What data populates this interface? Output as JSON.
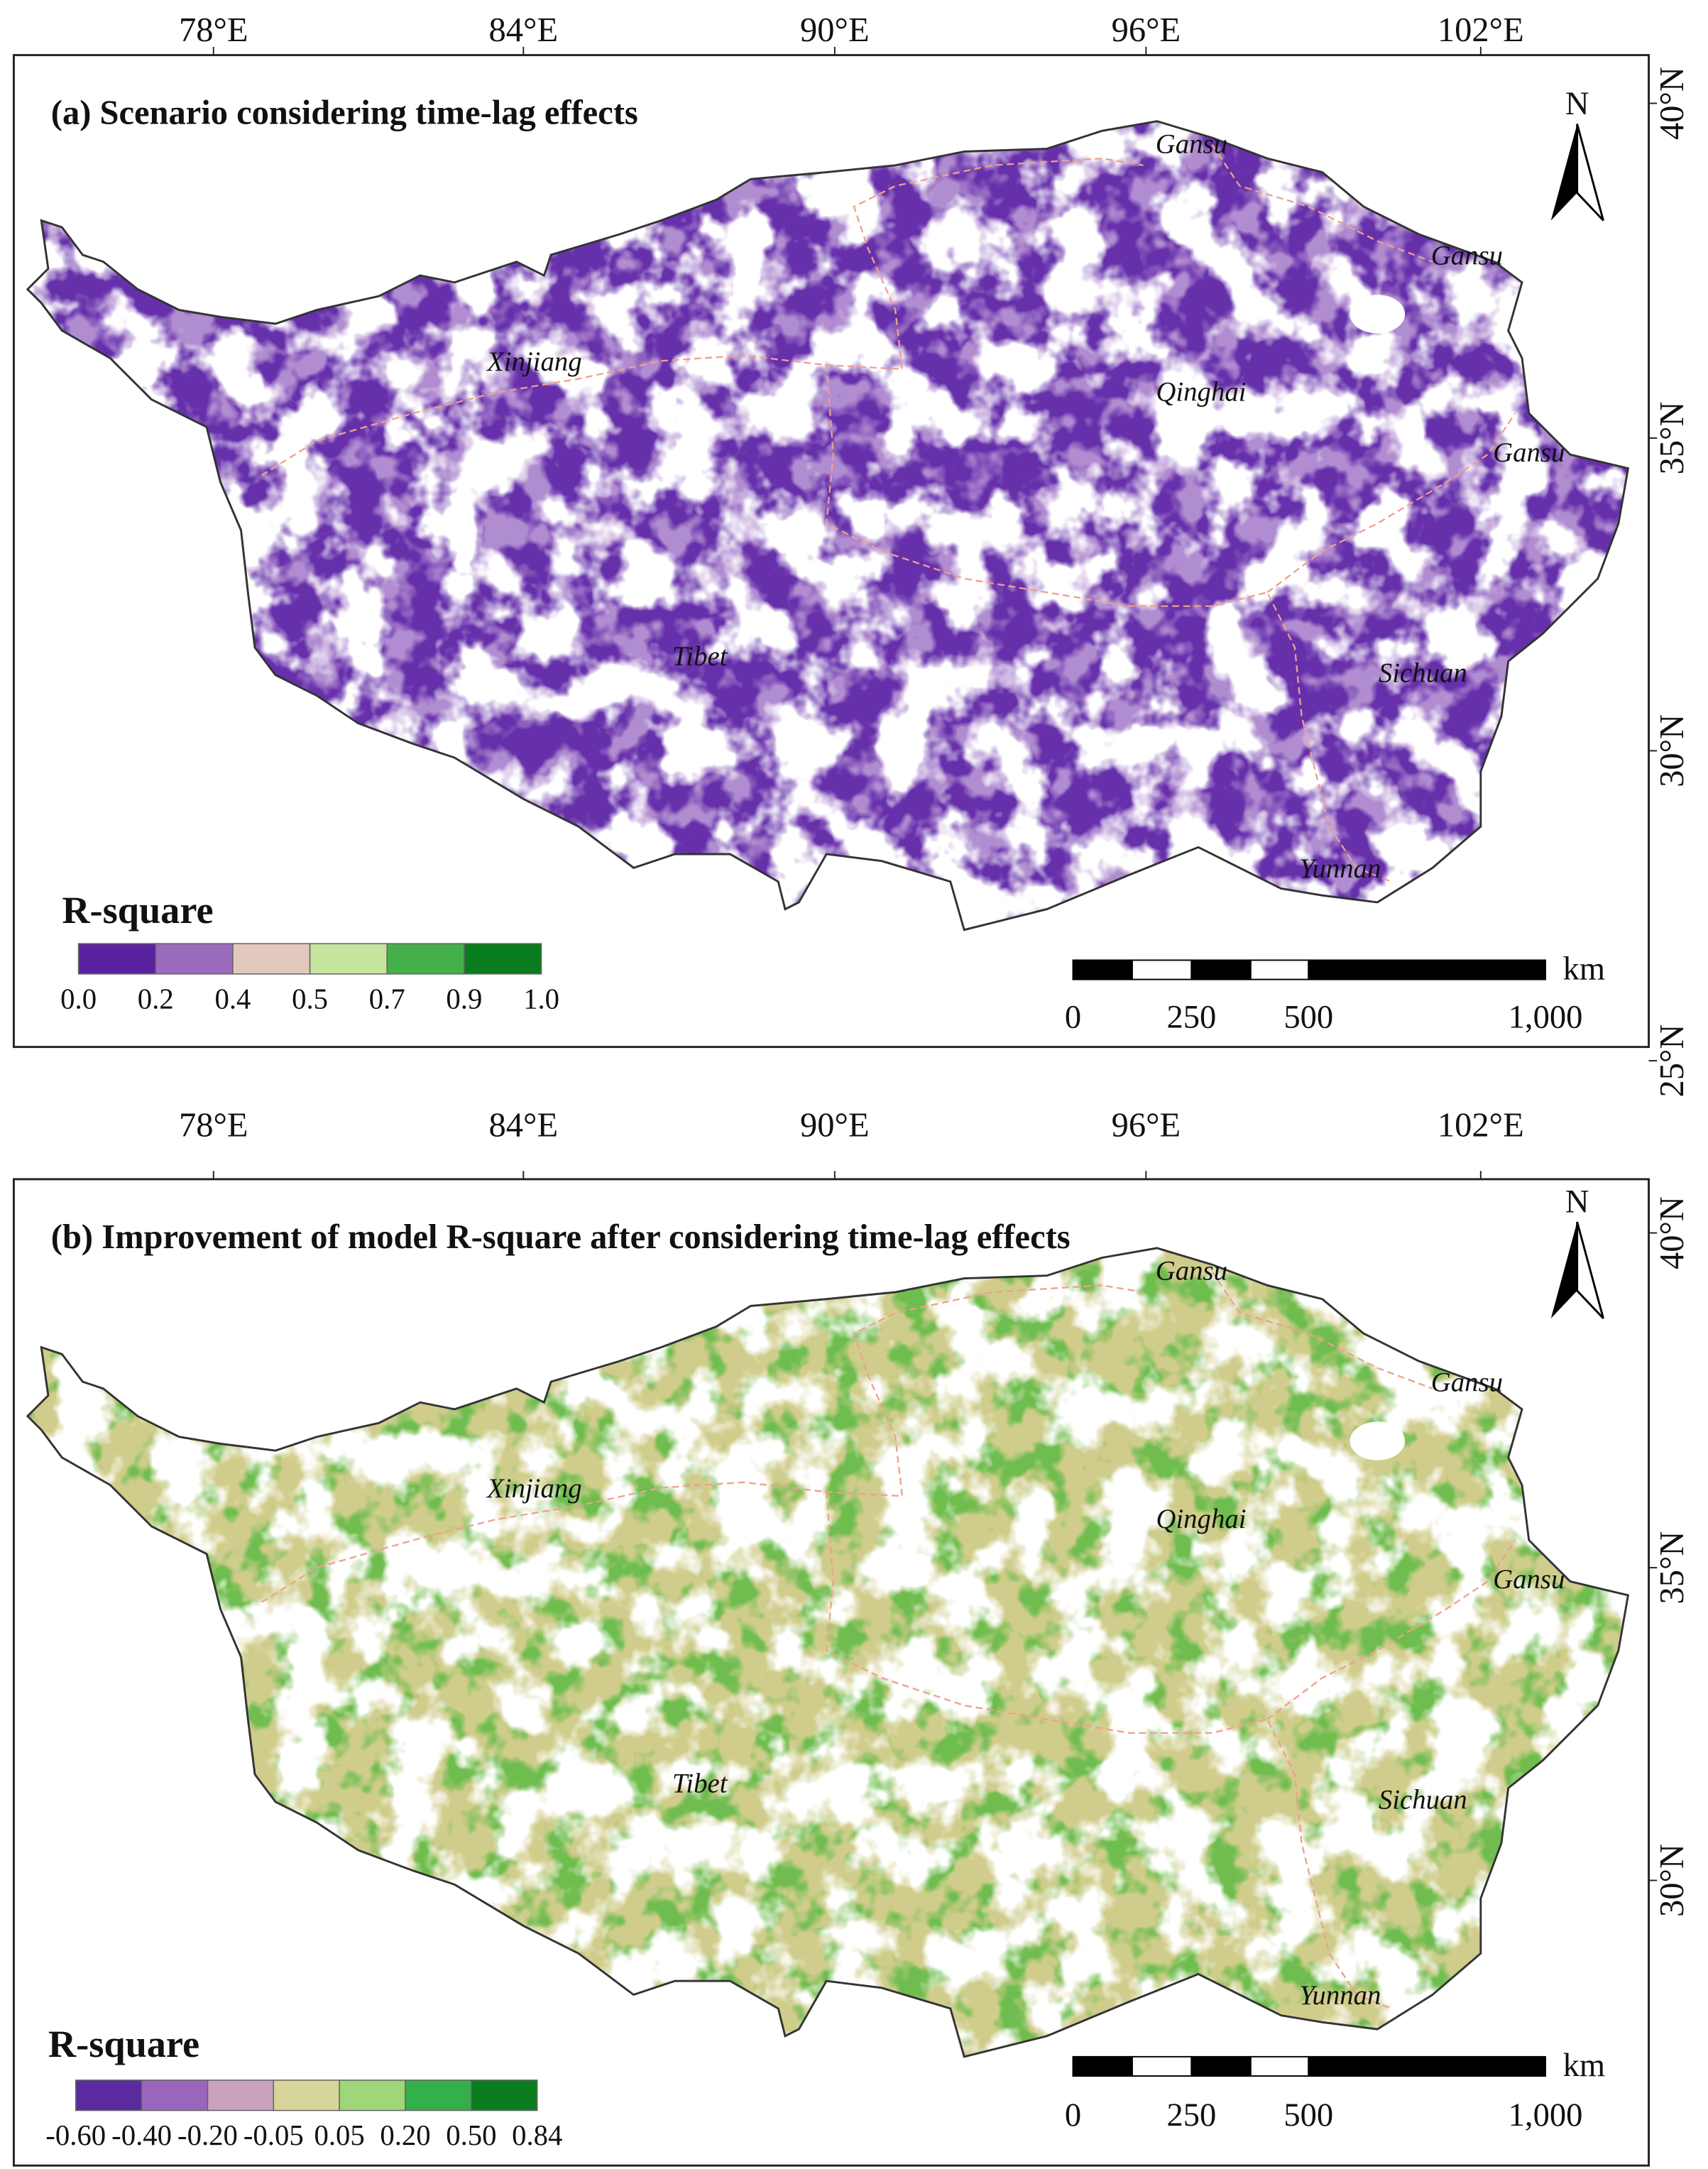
{
  "panels": [
    {
      "title": "(a) Scenario considering time-lag effects",
      "lon_labels": [
        "78°E",
        "84°E",
        "90°E",
        "96°E",
        "102°E"
      ],
      "lat_labels": [
        "40°N",
        "35°N",
        "30°N",
        "25°N"
      ],
      "provinces": [
        "Gansu",
        "Gansu",
        "Gansu",
        "Xinjiang",
        "Qinghai",
        "Tibet",
        "Sichuan",
        "Yunnan"
      ],
      "legend": {
        "title": "R-square",
        "colors": [
          "#5a22a0",
          "#9b6bbd",
          "#e3c9bd",
          "#c6e59c",
          "#45b04a",
          "#0a7d1e"
        ],
        "labels": [
          "0.0",
          "0.2",
          "0.4",
          "0.5",
          "0.7",
          "0.9",
          "1.0"
        ]
      },
      "scale": {
        "labels": [
          "0",
          "250",
          "500",
          "1,000"
        ],
        "unit": "km"
      },
      "north": "N"
    },
    {
      "title": "(b) Improvement of model R-square after considering time-lag effects",
      "lon_labels": [
        "78°E",
        "84°E",
        "90°E",
        "96°E",
        "102°E"
      ],
      "lat_labels": [
        "40°N",
        "35°N",
        "30°N"
      ],
      "provinces": [
        "Gansu",
        "Gansu",
        "Gansu",
        "Xinjiang",
        "Qinghai",
        "Tibet",
        "Sichuan",
        "Yunnan"
      ],
      "legend": {
        "title": "R-square",
        "colors": [
          "#5a2aa0",
          "#9a66bd",
          "#c9a2bd",
          "#d8d59a",
          "#9fd67a",
          "#33b04a",
          "#0a7d1e"
        ],
        "labels": [
          "-0.60",
          "-0.40",
          "-0.20",
          "-0.05",
          "0.05",
          "0.20",
          "0.50",
          "0.84"
        ]
      },
      "scale": {
        "labels": [
          "0",
          "250",
          "500",
          "1,000"
        ],
        "unit": "km"
      },
      "north": "N"
    }
  ]
}
